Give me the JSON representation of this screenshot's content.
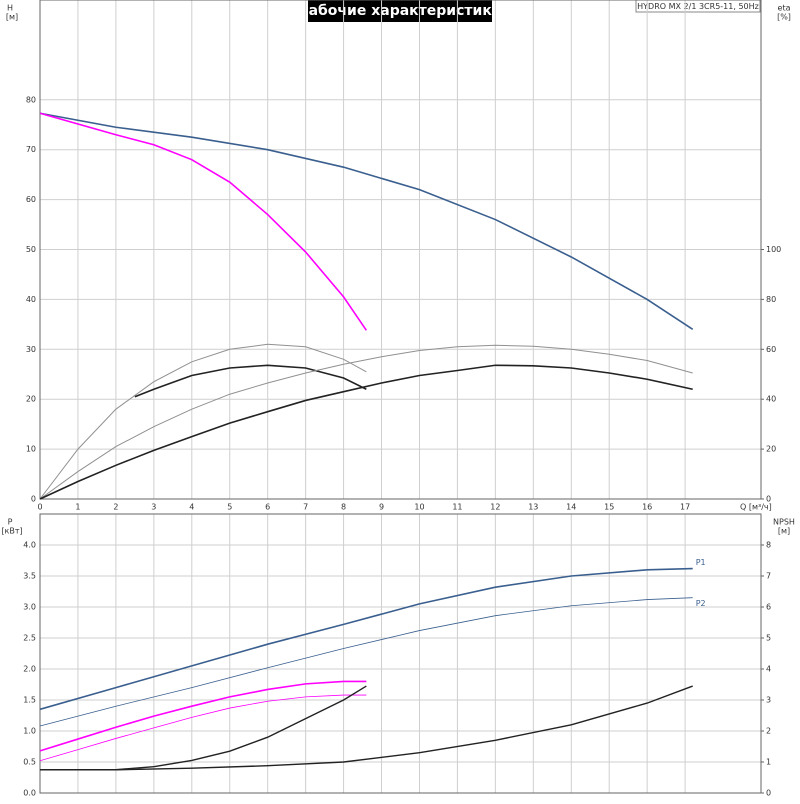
{
  "title": "Рабочие характеристики",
  "model": "HYDRO MX 2/1 3CR5-11, 50Hz",
  "chart_data": [
    {
      "type": "line",
      "ylabel": "H",
      "yunit": "[м]",
      "y2label": "eta",
      "y2unit": "[%]",
      "xlabel": "Q [м³/ч]",
      "xlim": [
        0,
        19
      ],
      "xticks": [
        0,
        1,
        2,
        3,
        4,
        5,
        6,
        7,
        8,
        9,
        10,
        11,
        12,
        13,
        14,
        15,
        16,
        17
      ],
      "ylim": [
        0,
        100
      ],
      "yticks": [
        0,
        10,
        20,
        30,
        40,
        50,
        60,
        70,
        80
      ],
      "y2lim": [
        0,
        200
      ],
      "y2ticks": [
        0,
        20,
        40,
        60,
        80,
        100
      ],
      "grid": true,
      "series": [
        {
          "color": "#3a5f8f",
          "width": 1.6,
          "axis": "y",
          "x": [
            0,
            2,
            4,
            6,
            8,
            10,
            12,
            14,
            16,
            17.2
          ],
          "values": [
            77.3,
            74.5,
            72.5,
            70,
            66.5,
            62,
            56,
            48.5,
            40,
            34
          ]
        },
        {
          "color": "#ff00ff",
          "width": 1.6,
          "axis": "y",
          "x": [
            0,
            2,
            3,
            4,
            5,
            6,
            7,
            8,
            8.6
          ],
          "values": [
            77.3,
            73,
            71,
            68,
            63.5,
            57,
            49.5,
            40.5,
            33.8
          ]
        },
        {
          "color": "#909090",
          "width": 1,
          "axis": "y2",
          "x": [
            0,
            1,
            2,
            3,
            4,
            5,
            6,
            7,
            8,
            8.6
          ],
          "values": [
            0,
            20,
            36,
            47,
            55,
            60,
            62,
            61,
            56,
            51
          ]
        },
        {
          "color": "#222222",
          "width": 1.6,
          "axis": "y2",
          "x": [
            2.5,
            3,
            4,
            5,
            6,
            7,
            8,
            8.6
          ],
          "values": [
            41,
            44,
            49.5,
            52.5,
            53.6,
            52.5,
            48.5,
            44
          ]
        },
        {
          "color": "#909090",
          "width": 1,
          "axis": "y2",
          "x": [
            0,
            1,
            2,
            3,
            4,
            5,
            6,
            7,
            8,
            9,
            10,
            11,
            12,
            13,
            14,
            15,
            16,
            17.2
          ],
          "values": [
            0,
            11,
            21,
            29,
            36,
            42,
            46.5,
            50.5,
            54,
            57,
            59.5,
            61,
            61.6,
            61.2,
            60,
            58,
            55.5,
            50.5
          ]
        },
        {
          "color": "#222222",
          "width": 1.6,
          "axis": "y2",
          "x": [
            0,
            1,
            2,
            3,
            4,
            5,
            6,
            7,
            8,
            9,
            10,
            11,
            12,
            13,
            14,
            15,
            16,
            17.2
          ],
          "values": [
            0,
            7,
            13.5,
            19.5,
            25,
            30.4,
            35,
            39.5,
            43,
            46.5,
            49.5,
            51.5,
            53.6,
            53.4,
            52.5,
            50.5,
            48,
            44
          ]
        }
      ]
    },
    {
      "type": "line",
      "ylabel": "P",
      "yunit": "[кВт]",
      "y2label": "NPSH",
      "y2unit": "[м]",
      "xlim": [
        0,
        19
      ],
      "xticks": [
        0,
        1,
        2,
        3,
        4,
        5,
        6,
        7,
        8,
        9,
        10,
        11,
        12,
        13,
        14,
        15,
        16,
        17
      ],
      "ylim": [
        0,
        4.5
      ],
      "yticks": [
        {
          "value": 0,
          "label": "0.0"
        },
        0.5,
        {
          "value": 1,
          "label": "1.0"
        },
        1.5,
        {
          "value": 2,
          "label": "2.0"
        },
        2.5,
        {
          "value": 3,
          "label": "3.0"
        },
        3.5,
        {
          "value": 4,
          "label": "4.0"
        }
      ],
      "y2lim": [
        0,
        9
      ],
      "y2ticks": [
        0,
        1,
        2,
        3,
        4,
        5,
        6,
        7,
        8
      ],
      "grid": true,
      "series": [
        {
          "name": "P1",
          "color": "#3a5f8f",
          "width": 1.6,
          "axis": "y",
          "x": [
            0,
            2,
            4,
            6,
            8,
            10,
            12,
            14,
            16,
            17.2
          ],
          "values": [
            1.35,
            1.7,
            2.05,
            2.4,
            2.72,
            3.05,
            3.32,
            3.5,
            3.6,
            3.62
          ]
        },
        {
          "name": "P2",
          "color": "#3a5f8f",
          "width": 0.8,
          "axis": "y",
          "x": [
            0,
            2,
            4,
            6,
            8,
            10,
            12,
            14,
            16,
            17.2
          ],
          "values": [
            1.08,
            1.4,
            1.7,
            2.02,
            2.33,
            2.62,
            2.86,
            3.02,
            3.12,
            3.15
          ]
        },
        {
          "color": "#ff00ff",
          "width": 1.6,
          "axis": "y",
          "x": [
            0,
            1,
            2,
            3,
            4,
            5,
            6,
            7,
            8,
            8.6
          ],
          "values": [
            0.68,
            0.87,
            1.06,
            1.24,
            1.4,
            1.55,
            1.67,
            1.76,
            1.8,
            1.8
          ]
        },
        {
          "color": "#ff00ff",
          "width": 0.8,
          "axis": "y",
          "x": [
            0,
            1,
            2,
            3,
            4,
            5,
            6,
            7,
            8,
            8.6
          ],
          "values": [
            0.52,
            0.7,
            0.88,
            1.05,
            1.22,
            1.37,
            1.48,
            1.55,
            1.58,
            1.58
          ]
        },
        {
          "color": "#222222",
          "width": 1.4,
          "axis": "y2",
          "x": [
            0,
            2,
            4,
            6,
            8,
            10,
            12,
            14,
            16,
            17.2
          ],
          "values": [
            0.75,
            0.75,
            0.8,
            0.88,
            1,
            1.3,
            1.7,
            2.2,
            2.9,
            3.45
          ]
        },
        {
          "color": "#222222",
          "width": 1.4,
          "axis": "y2",
          "x": [
            0,
            2,
            3,
            4,
            5,
            6,
            7,
            8,
            8.6
          ],
          "values": [
            0.75,
            0.75,
            0.85,
            1.05,
            1.35,
            1.8,
            2.4,
            3,
            3.45
          ]
        }
      ]
    }
  ]
}
